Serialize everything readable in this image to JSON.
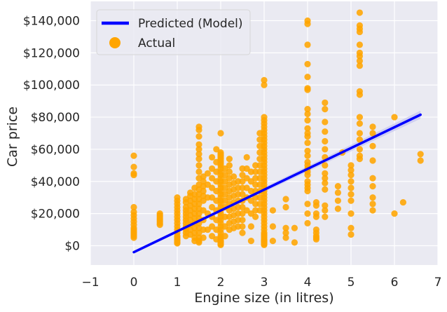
{
  "chart_data": {
    "type": "scatter",
    "title": "",
    "xlabel": "Engine size (in litres)",
    "ylabel": "Car price",
    "xlim": [
      -1,
      7
    ],
    "ylim": [
      -12000,
      152000
    ],
    "x_ticks": [
      -1,
      0,
      1,
      2,
      3,
      4,
      5,
      6,
      7
    ],
    "x_tick_labels": [
      "−1",
      "0",
      "1",
      "2",
      "3",
      "4",
      "5",
      "6",
      "7"
    ],
    "y_ticks": [
      0,
      20000,
      40000,
      60000,
      80000,
      100000,
      120000,
      140000
    ],
    "y_tick_labels": [
      "$0",
      "$20,000",
      "$40,000",
      "$60,000",
      "$80,000",
      "$100,000",
      "$120,000",
      "$140,000"
    ],
    "grid": true,
    "legend_position": "top-left",
    "colors": {
      "background": "#eaeaf2",
      "grid": "#ffffff",
      "line": "#0000ff",
      "points": "#ffa500",
      "ci_band": "#c8c8f0"
    },
    "series": [
      {
        "name": "Predicted (Model)",
        "type": "line",
        "x": [
          0,
          6.6
        ],
        "y": [
          -4000,
          81500
        ],
        "ci_upper": [
          -3500,
          84000
        ],
        "ci_lower": [
          -4500,
          79000
        ]
      },
      {
        "name": "Actual",
        "type": "scatter",
        "x": [
          0,
          0,
          0,
          0,
          0,
          0,
          0,
          0,
          0,
          0,
          0,
          0,
          0,
          0,
          0,
          0,
          0,
          0.6,
          0.6,
          0.6,
          0.6,
          0.6,
          0.6,
          0.6,
          0.6,
          1,
          1,
          1,
          1,
          1,
          1,
          1,
          1,
          1,
          1,
          1,
          1,
          1,
          1,
          1,
          1,
          1,
          1,
          1.2,
          1.2,
          1.2,
          1.2,
          1.2,
          1.2,
          1.2,
          1.2,
          1.2,
          1.2,
          1.2,
          1.2,
          1.3,
          1.3,
          1.3,
          1.3,
          1.3,
          1.3,
          1.3,
          1.3,
          1.3,
          1.3,
          1.4,
          1.4,
          1.4,
          1.4,
          1.4,
          1.4,
          1.4,
          1.4,
          1.4,
          1.4,
          1.4,
          1.4,
          1.5,
          1.5,
          1.5,
          1.5,
          1.5,
          1.5,
          1.5,
          1.5,
          1.5,
          1.5,
          1.5,
          1.5,
          1.5,
          1.5,
          1.5,
          1.5,
          1.5,
          1.5,
          1.5,
          1.5,
          1.5,
          1.5,
          1.5,
          1.5,
          1.6,
          1.6,
          1.6,
          1.6,
          1.6,
          1.6,
          1.6,
          1.6,
          1.6,
          1.6,
          1.7,
          1.7,
          1.7,
          1.7,
          1.7,
          1.8,
          1.8,
          1.8,
          1.8,
          1.8,
          1.8,
          1.8,
          1.8,
          1.8,
          1.9,
          1.9,
          1.9,
          1.9,
          1.9,
          1.9,
          1.9,
          1.9,
          1.9,
          1.9,
          2,
          2,
          2,
          2,
          2,
          2,
          2,
          2,
          2,
          2,
          2,
          2,
          2,
          2,
          2,
          2,
          2,
          2,
          2,
          2,
          2,
          2,
          2,
          2,
          2,
          2,
          2,
          2,
          2,
          2,
          2,
          2,
          2,
          2,
          2,
          2,
          2,
          2,
          2,
          2,
          2.1,
          2.1,
          2.1,
          2.1,
          2.1,
          2.1,
          2.1,
          2.1,
          2.1,
          2.1,
          2.2,
          2.2,
          2.2,
          2.2,
          2.2,
          2.2,
          2.2,
          2.2,
          2.2,
          2.2,
          2.2,
          2.2,
          2.3,
          2.3,
          2.3,
          2.3,
          2.3,
          2.3,
          2.3,
          2.3,
          2.3,
          2.4,
          2.4,
          2.4,
          2.4,
          2.4,
          2.4,
          2.4,
          2.4,
          2.5,
          2.5,
          2.5,
          2.5,
          2.5,
          2.5,
          2.5,
          2.5,
          2.5,
          2.5,
          2.5,
          2.6,
          2.6,
          2.6,
          2.6,
          2.6,
          2.6,
          2.7,
          2.7,
          2.7,
          2.7,
          2.7,
          2.7,
          2.7,
          2.8,
          2.8,
          2.8,
          2.8,
          2.8,
          2.8,
          2.8,
          2.8,
          2.8,
          2.9,
          2.9,
          2.9,
          2.9,
          2.9,
          2.9,
          2.9,
          2.9,
          2.9,
          2.9,
          2.9,
          2.9,
          2.9,
          3,
          3,
          3,
          3,
          3,
          3,
          3,
          3,
          3,
          3,
          3,
          3,
          3,
          3,
          3,
          3,
          3,
          3,
          3,
          3,
          3,
          3,
          3,
          3,
          3,
          3,
          3,
          3,
          3,
          3,
          3,
          3,
          3,
          3,
          3,
          3,
          3,
          3,
          3,
          3,
          3,
          3,
          3,
          3,
          3,
          3,
          3,
          3,
          3,
          3,
          3.2,
          3.2,
          3.2,
          3.5,
          3.5,
          3.5,
          3.5,
          3.5,
          3.7,
          3.7,
          4,
          4,
          4,
          4,
          4,
          4,
          4,
          4,
          4,
          4,
          4,
          4,
          4,
          4,
          4,
          4,
          4,
          4,
          4,
          4,
          4,
          4,
          4,
          4,
          4,
          4,
          4,
          4,
          4.2,
          4.2,
          4.2,
          4.2,
          4.2,
          4.2,
          4.2,
          4.2,
          4.2,
          4.4,
          4.4,
          4.4,
          4.4,
          4.4,
          4.4,
          4.4,
          4.4,
          4.4,
          4.4,
          4.4,
          4.4,
          4.4,
          4.4,
          4.4,
          4.7,
          4.7,
          4.7,
          4.7,
          4.8,
          5,
          5,
          5,
          5,
          5,
          5,
          5,
          5,
          5,
          5,
          5.2,
          5.2,
          5.2,
          5.2,
          5.2,
          5.2,
          5.2,
          5.2,
          5.2,
          5.2,
          5.2,
          5.2,
          5.2,
          5.2,
          5.2,
          5.2,
          5.2,
          5.2,
          5.5,
          5.5,
          5.5,
          5.5,
          5.5,
          5.5,
          5.5,
          5.5,
          5.5,
          6,
          6,
          6.2,
          6.6,
          6.6
        ],
        "y": [
          56000,
          49000,
          45000,
          44000,
          24000,
          21000,
          19000,
          17000,
          15000,
          13000,
          11000,
          10000,
          9000,
          8000,
          7000,
          6000,
          5000,
          20000,
          19000,
          18000,
          17000,
          16000,
          15000,
          14000,
          13000,
          30000,
          28000,
          26000,
          24000,
          22000,
          20000,
          18000,
          16000,
          14000,
          12000,
          10000,
          8000,
          6000,
          5000,
          4000,
          3000,
          2000,
          1500,
          29000,
          27000,
          24000,
          22000,
          20000,
          18000,
          16000,
          14000,
          12000,
          10000,
          8000,
          6000,
          33000,
          31000,
          28000,
          25000,
          22000,
          19000,
          16000,
          13000,
          10000,
          7000,
          36000,
          32000,
          29000,
          26000,
          23000,
          20000,
          17000,
          14000,
          11000,
          8000,
          5000,
          3000,
          74000,
          72000,
          68000,
          63000,
          60000,
          57000,
          54000,
          50000,
          46000,
          42000,
          38000,
          35000,
          32000,
          29000,
          26000,
          23000,
          20000,
          17000,
          14000,
          11000,
          8000,
          5000,
          3000,
          2000,
          43000,
          40000,
          37000,
          34000,
          31000,
          28000,
          22000,
          16000,
          10000,
          5000,
          45000,
          38000,
          30000,
          20000,
          10000,
          55000,
          48000,
          42000,
          36000,
          30000,
          24000,
          18000,
          12000,
          6000,
          60000,
          52000,
          46000,
          40000,
          34000,
          28000,
          22000,
          16000,
          10000,
          4000,
          70000,
          58000,
          57000,
          56000,
          55000,
          54000,
          53000,
          52000,
          51000,
          50000,
          48000,
          46000,
          44000,
          42000,
          40000,
          38000,
          36000,
          34000,
          32000,
          30000,
          28000,
          26000,
          24000,
          22000,
          20000,
          18000,
          16000,
          14000,
          12000,
          10000,
          8000,
          6000,
          5000,
          4000,
          3000,
          2500,
          2000,
          1500,
          1000,
          500,
          48000,
          44000,
          40000,
          36000,
          32000,
          28000,
          24000,
          18000,
          12000,
          6000,
          54000,
          50000,
          46000,
          42000,
          38000,
          34000,
          30000,
          26000,
          22000,
          18000,
          14000,
          10000,
          43000,
          39000,
          35000,
          31000,
          27000,
          23000,
          19000,
          15000,
          11000,
          40000,
          36000,
          32000,
          28000,
          24000,
          20000,
          16000,
          12000,
          48000,
          44000,
          40000,
          36000,
          32000,
          28000,
          24000,
          20000,
          16000,
          12000,
          8000,
          55000,
          48000,
          42000,
          36000,
          30000,
          22000,
          46000,
          40000,
          34000,
          28000,
          20000,
          12000,
          3000,
          50000,
          46000,
          42000,
          38000,
          34000,
          30000,
          26000,
          22000,
          18000,
          70000,
          66000,
          62000,
          58000,
          54000,
          50000,
          46000,
          42000,
          38000,
          34000,
          30000,
          26000,
          22000,
          103000,
          100000,
          80000,
          78000,
          76000,
          74000,
          72000,
          70000,
          68000,
          66000,
          64000,
          62000,
          60000,
          58000,
          56000,
          54000,
          52000,
          50000,
          48000,
          46000,
          44000,
          42000,
          40000,
          38000,
          36000,
          34000,
          32000,
          30000,
          28000,
          26000,
          24000,
          22000,
          20000,
          18000,
          16000,
          14000,
          12000,
          10000,
          8000,
          7000,
          6000,
          5000,
          4000,
          3500,
          3000,
          2500,
          2000,
          1500,
          1000,
          500,
          22000,
          12000,
          3000,
          29000,
          24000,
          11000,
          8000,
          5000,
          11000,
          2000,
          140000,
          138000,
          125000,
          113000,
          105000,
          98000,
          97000,
          85000,
          82000,
          78000,
          73000,
          70000,
          68000,
          64000,
          59000,
          56000,
          52000,
          50000,
          48000,
          46000,
          44000,
          40000,
          38000,
          36000,
          34000,
          26000,
          20000,
          14000,
          27000,
          25000,
          20000,
          18000,
          10000,
          8000,
          6000,
          5000,
          4000,
          89000,
          85000,
          77000,
          71000,
          65000,
          60000,
          55000,
          50000,
          45000,
          42000,
          39000,
          35000,
          25000,
          22000,
          18000,
          37000,
          33000,
          28000,
          23000,
          58000,
          50000,
          47000,
          44000,
          40000,
          36000,
          32000,
          28000,
          20000,
          11000,
          7000,
          145000,
          137000,
          135000,
          133000,
          125000,
          120000,
          118000,
          115000,
          112000,
          96000,
          94000,
          80000,
          76000,
          70000,
          66000,
          60000,
          56000,
          54000,
          74000,
          70000,
          62000,
          53000,
          42000,
          37000,
          30000,
          26000,
          22000,
          80000,
          20000,
          27000,
          57000,
          53000
        ]
      }
    ]
  }
}
